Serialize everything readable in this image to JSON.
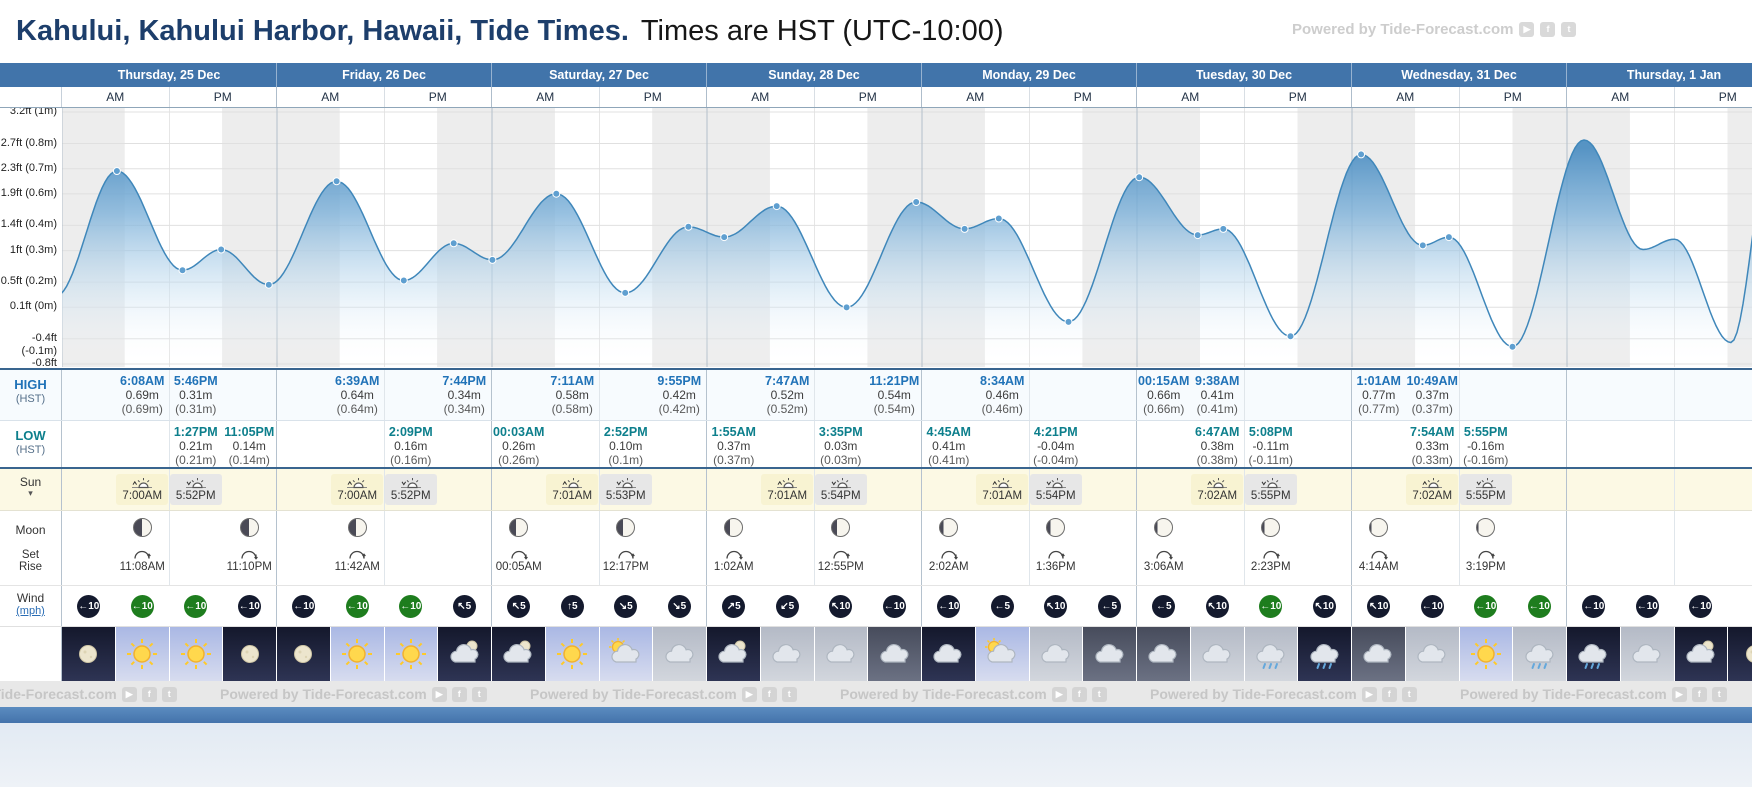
{
  "header": {
    "title_bold": "Kahului, Kahului Harbor, Hawaii, Tide Times.",
    "title_rest": "Times are HST (UTC-10:00)",
    "powered_by": "Powered by Tide-Forecast.com"
  },
  "labels": {
    "am": "AM",
    "pm": "PM",
    "high": "HIGH",
    "low": "LOW",
    "hst": "(HST)",
    "sun": "Sun",
    "sun_caret": "▾",
    "moon": "Moon",
    "set": "Set",
    "rise": "Rise",
    "wind": "Wind",
    "wind_unit": "(mph)"
  },
  "colors": {
    "day_header_blue": "#4174aa",
    "high_time_blue": "#2173b8",
    "low_time_teal": "#0d7f8c",
    "title_navy": "#1d3e6b",
    "badge_dark": "#141a2e",
    "badge_green": "#1e7d1e",
    "footer_blue": "#4b7eb6"
  },
  "chart_data": {
    "type": "area",
    "title": "Tide height curve, Kahului Harbor, 25-31 Dec",
    "unit": "m",
    "grid": true,
    "hours_per_day": 24,
    "y_axis_labels": [
      "3.2ft (1m)",
      "2.7ft (0.8m)",
      "2.3ft (0.7m)",
      "1.9ft (0.6m)",
      "1.4ft (0.4m)",
      "1ft (0.3m)",
      "0.5ft (0.2m)",
      "0.1ft (0m)",
      "-0.4ft (-0.1m)",
      "-0.8ft (-0.2m)"
    ],
    "y_ticks_ft": [
      3.2,
      2.7,
      2.3,
      1.9,
      1.4,
      1.0,
      0.5,
      0.1,
      -0.4,
      -0.8
    ],
    "extremes": [
      {
        "t": -0.8,
        "h": 0.08,
        "dot": false
      },
      {
        "t": 6.13,
        "h": 0.69,
        "dot": true
      },
      {
        "t": 13.45,
        "h": 0.21,
        "dot": true
      },
      {
        "t": 17.77,
        "h": 0.31,
        "dot": true
      },
      {
        "t": 23.08,
        "h": 0.14,
        "dot": true
      },
      {
        "t": 30.65,
        "h": 0.64,
        "dot": true
      },
      {
        "t": 38.15,
        "h": 0.16,
        "dot": true
      },
      {
        "t": 43.73,
        "h": 0.34,
        "dot": true
      },
      {
        "t": 48.05,
        "h": 0.26,
        "dot": true
      },
      {
        "t": 55.18,
        "h": 0.58,
        "dot": true
      },
      {
        "t": 62.87,
        "h": 0.1,
        "dot": true
      },
      {
        "t": 69.92,
        "h": 0.42,
        "dot": true
      },
      {
        "t": 73.92,
        "h": 0.37,
        "dot": true
      },
      {
        "t": 79.78,
        "h": 0.52,
        "dot": true
      },
      {
        "t": 87.58,
        "h": 0.03,
        "dot": true
      },
      {
        "t": 95.35,
        "h": 0.54,
        "dot": true
      },
      {
        "t": 100.75,
        "h": 0.41,
        "dot": true
      },
      {
        "t": 104.57,
        "h": 0.46,
        "dot": true
      },
      {
        "t": 112.35,
        "h": -0.04,
        "dot": true
      },
      {
        "t": 120.25,
        "h": 0.66,
        "dot": true
      },
      {
        "t": 126.78,
        "h": 0.38,
        "dot": true
      },
      {
        "t": 129.63,
        "h": 0.41,
        "dot": true
      },
      {
        "t": 137.13,
        "h": -0.11,
        "dot": true
      },
      {
        "t": 145.02,
        "h": 0.77,
        "dot": true
      },
      {
        "t": 151.9,
        "h": 0.33,
        "dot": true
      },
      {
        "t": 154.82,
        "h": 0.37,
        "dot": true
      },
      {
        "t": 161.92,
        "h": -0.16,
        "dot": true
      },
      {
        "t": 169.9,
        "h": 0.84,
        "dot": false
      },
      {
        "t": 176.5,
        "h": 0.31,
        "dot": false
      },
      {
        "t": 180.0,
        "h": 0.36,
        "dot": false
      },
      {
        "t": 186.3,
        "h": -0.14,
        "dot": false
      },
      {
        "t": 191.0,
        "h": 0.85,
        "dot": false
      }
    ],
    "night_bands": [
      [
        -6.0,
        7.0
      ],
      [
        17.87,
        31.0
      ],
      [
        41.87,
        55.02
      ],
      [
        65.88,
        79.02
      ],
      [
        89.9,
        103.02
      ],
      [
        113.9,
        127.03
      ],
      [
        137.92,
        151.05
      ],
      [
        161.92,
        175.03
      ],
      [
        185.92,
        199.0
      ]
    ]
  },
  "days": [
    {
      "label": "Thursday, 25 Dec",
      "high": [
        {
          "slot": 2,
          "time": "6:08AM",
          "m": "0.69m",
          "alt": "(0.69m)"
        },
        {
          "slot": 3,
          "time": "5:46PM",
          "m": "0.31m",
          "alt": "(0.31m)"
        }
      ],
      "low": [
        {
          "slot": 3,
          "time": "1:27PM",
          "m": "0.21m",
          "alt": "(0.21m)"
        },
        {
          "slot": 4,
          "time": "11:05PM",
          "m": "0.14m",
          "alt": "(0.14m)"
        }
      ],
      "sun": [
        {
          "slot": 2,
          "type": "rise",
          "time": "7:00AM"
        },
        {
          "slot": 3,
          "type": "set",
          "time": "5:52PM"
        }
      ],
      "moon": [
        {
          "slot": 2,
          "type": "rise",
          "time": "11:08AM"
        },
        {
          "slot": 4,
          "type": "set",
          "time": "11:10PM"
        }
      ],
      "moon_lit": 52,
      "wind": [
        {
          "slot": 1,
          "dir": "W",
          "mph": 10,
          "level": "calm"
        },
        {
          "slot": 2,
          "dir": "W",
          "mph": 10,
          "level": "fresh"
        },
        {
          "slot": 3,
          "dir": "W",
          "mph": 10,
          "level": "fresh"
        },
        {
          "slot": 4,
          "dir": "W",
          "mph": 10,
          "level": "calm"
        }
      ],
      "weather": [
        {
          "bg": "night",
          "icon": "moon"
        },
        {
          "bg": "day",
          "icon": "sun"
        },
        {
          "bg": "day",
          "icon": "sun"
        },
        {
          "bg": "night",
          "icon": "moon"
        }
      ]
    },
    {
      "label": "Friday, 26 Dec",
      "high": [
        {
          "slot": 2,
          "time": "6:39AM",
          "m": "0.64m",
          "alt": "(0.64m)"
        },
        {
          "slot": 4,
          "time": "7:44PM",
          "m": "0.34m",
          "alt": "(0.34m)"
        }
      ],
      "low": [
        {
          "slot": 3,
          "time": "2:09PM",
          "m": "0.16m",
          "alt": "(0.16m)"
        }
      ],
      "sun": [
        {
          "slot": 2,
          "type": "rise",
          "time": "7:00AM"
        },
        {
          "slot": 3,
          "type": "set",
          "time": "5:52PM"
        }
      ],
      "moon": [
        {
          "slot": 2,
          "type": "rise",
          "time": "11:42AM"
        }
      ],
      "moon_lit": 58,
      "wind": [
        {
          "slot": 1,
          "dir": "W",
          "mph": 10,
          "level": "calm"
        },
        {
          "slot": 2,
          "dir": "W",
          "mph": 10,
          "level": "fresh"
        },
        {
          "slot": 3,
          "dir": "W",
          "mph": 10,
          "level": "fresh"
        },
        {
          "slot": 4,
          "dir": "NW",
          "mph": 5,
          "level": "calm"
        }
      ],
      "weather": [
        {
          "bg": "night",
          "icon": "moon"
        },
        {
          "bg": "day",
          "icon": "sun"
        },
        {
          "bg": "day",
          "icon": "sun"
        },
        {
          "bg": "night",
          "icon": "cloud-moon"
        }
      ]
    },
    {
      "label": "Saturday, 27 Dec",
      "high": [
        {
          "slot": 2,
          "time": "7:11AM",
          "m": "0.58m",
          "alt": "(0.58m)"
        },
        {
          "slot": 4,
          "time": "9:55PM",
          "m": "0.42m",
          "alt": "(0.42m)"
        }
      ],
      "low": [
        {
          "slot": 1,
          "time": "00:03AM",
          "m": "0.26m",
          "alt": "(0.26m)"
        },
        {
          "slot": 3,
          "time": "2:52PM",
          "m": "0.10m",
          "alt": "(0.1m)"
        }
      ],
      "sun": [
        {
          "slot": 2,
          "type": "rise",
          "time": "7:01AM"
        },
        {
          "slot": 3,
          "type": "set",
          "time": "5:53PM"
        }
      ],
      "moon": [
        {
          "slot": 1,
          "type": "set",
          "time": "00:05AM"
        },
        {
          "slot": 3,
          "type": "rise",
          "time": "12:17PM"
        }
      ],
      "moon_lit": 65,
      "wind": [
        {
          "slot": 1,
          "dir": "NW",
          "mph": 5,
          "level": "calm"
        },
        {
          "slot": 2,
          "dir": "N",
          "mph": 5,
          "level": "calm"
        },
        {
          "slot": 3,
          "dir": "SE",
          "mph": 5,
          "level": "calm"
        },
        {
          "slot": 4,
          "dir": "SE",
          "mph": 5,
          "level": "calm"
        }
      ],
      "weather": [
        {
          "bg": "night",
          "icon": "cloud-moon"
        },
        {
          "bg": "day",
          "icon": "sun"
        },
        {
          "bg": "day",
          "icon": "sun-cloud"
        },
        {
          "bg": "gray",
          "icon": "cloud"
        }
      ]
    },
    {
      "label": "Sunday, 28 Dec",
      "high": [
        {
          "slot": 2,
          "time": "7:47AM",
          "m": "0.52m",
          "alt": "(0.52m)"
        },
        {
          "slot": 4,
          "time": "11:21PM",
          "m": "0.54m",
          "alt": "(0.54m)"
        }
      ],
      "low": [
        {
          "slot": 1,
          "time": "1:55AM",
          "m": "0.37m",
          "alt": "(0.37m)"
        },
        {
          "slot": 3,
          "time": "3:35PM",
          "m": "0.03m",
          "alt": "(0.03m)"
        }
      ],
      "sun": [
        {
          "slot": 2,
          "type": "rise",
          "time": "7:01AM"
        },
        {
          "slot": 3,
          "type": "set",
          "time": "5:54PM"
        }
      ],
      "moon": [
        {
          "slot": 1,
          "type": "set",
          "time": "1:02AM"
        },
        {
          "slot": 3,
          "type": "rise",
          "time": "12:55PM"
        }
      ],
      "moon_lit": 72,
      "wind": [
        {
          "slot": 1,
          "dir": "NE",
          "mph": 5,
          "level": "calm"
        },
        {
          "slot": 2,
          "dir": "SW",
          "mph": 5,
          "level": "calm"
        },
        {
          "slot": 3,
          "dir": "NW",
          "mph": 10,
          "level": "calm"
        },
        {
          "slot": 4,
          "dir": "W",
          "mph": 10,
          "level": "calm"
        }
      ],
      "weather": [
        {
          "bg": "night",
          "icon": "cloud-moon"
        },
        {
          "bg": "gray",
          "icon": "cloud"
        },
        {
          "bg": "gray",
          "icon": "cloud"
        },
        {
          "bg": "darkgray",
          "icon": "cloud"
        }
      ]
    },
    {
      "label": "Monday, 29 Dec",
      "high": [
        {
          "slot": 2,
          "time": "8:34AM",
          "m": "0.46m",
          "alt": "(0.46m)"
        }
      ],
      "low": [
        {
          "slot": 1,
          "time": "4:45AM",
          "m": "0.41m",
          "alt": "(0.41m)"
        },
        {
          "slot": 3,
          "time": "4:21PM",
          "m": "-0.04m",
          "alt": "(-0.04m)"
        }
      ],
      "sun": [
        {
          "slot": 2,
          "type": "rise",
          "time": "7:01AM"
        },
        {
          "slot": 3,
          "type": "set",
          "time": "5:54PM"
        }
      ],
      "moon": [
        {
          "slot": 1,
          "type": "set",
          "time": "2:02AM"
        },
        {
          "slot": 3,
          "type": "rise",
          "time": "1:36PM"
        }
      ],
      "moon_lit": 80,
      "wind": [
        {
          "slot": 1,
          "dir": "W",
          "mph": 10,
          "level": "calm"
        },
        {
          "slot": 2,
          "dir": "W",
          "mph": 5,
          "level": "calm"
        },
        {
          "slot": 3,
          "dir": "NW",
          "mph": 10,
          "level": "calm"
        },
        {
          "slot": 4,
          "dir": "W",
          "mph": 5,
          "level": "calm"
        }
      ],
      "weather": [
        {
          "bg": "night",
          "icon": "cloud"
        },
        {
          "bg": "day",
          "icon": "sun-cloud"
        },
        {
          "bg": "gray",
          "icon": "cloud"
        },
        {
          "bg": "darkgray",
          "icon": "cloud"
        }
      ]
    },
    {
      "label": "Tuesday, 30 Dec",
      "high": [
        {
          "slot": 1,
          "time": "00:15AM",
          "m": "0.66m",
          "alt": "(0.66m)"
        },
        {
          "slot": 2,
          "time": "9:38AM",
          "m": "0.41m",
          "alt": "(0.41m)"
        }
      ],
      "low": [
        {
          "slot": 2,
          "time": "6:47AM",
          "m": "0.38m",
          "alt": "(0.38m)"
        },
        {
          "slot": 3,
          "time": "5:08PM",
          "m": "-0.11m",
          "alt": "(-0.11m)"
        }
      ],
      "sun": [
        {
          "slot": 2,
          "type": "rise",
          "time": "7:02AM"
        },
        {
          "slot": 3,
          "type": "set",
          "time": "5:55PM"
        }
      ],
      "moon": [
        {
          "slot": 1,
          "type": "set",
          "time": "3:06AM"
        },
        {
          "slot": 3,
          "type": "rise",
          "time": "2:23PM"
        }
      ],
      "moon_lit": 86,
      "wind": [
        {
          "slot": 1,
          "dir": "W",
          "mph": 5,
          "level": "calm"
        },
        {
          "slot": 2,
          "dir": "NW",
          "mph": 10,
          "level": "calm"
        },
        {
          "slot": 3,
          "dir": "W",
          "mph": 10,
          "level": "fresh"
        },
        {
          "slot": 4,
          "dir": "NW",
          "mph": 10,
          "level": "calm"
        }
      ],
      "weather": [
        {
          "bg": "darkgray",
          "icon": "cloud"
        },
        {
          "bg": "gray",
          "icon": "cloud"
        },
        {
          "bg": "gray",
          "icon": "rain"
        },
        {
          "bg": "night",
          "icon": "rain"
        }
      ]
    },
    {
      "label": "Wednesday, 31 Dec",
      "high": [
        {
          "slot": 1,
          "time": "1:01AM",
          "m": "0.77m",
          "alt": "(0.77m)"
        },
        {
          "slot": 2,
          "time": "10:49AM",
          "m": "0.37m",
          "alt": "(0.37m)"
        }
      ],
      "low": [
        {
          "slot": 2,
          "time": "7:54AM",
          "m": "0.33m",
          "alt": "(0.33m)"
        },
        {
          "slot": 3,
          "time": "5:55PM",
          "m": "-0.16m",
          "alt": "(-0.16m)"
        }
      ],
      "sun": [
        {
          "slot": 2,
          "type": "rise",
          "time": "7:02AM"
        },
        {
          "slot": 3,
          "type": "set",
          "time": "5:55PM"
        }
      ],
      "moon": [
        {
          "slot": 1,
          "type": "set",
          "time": "4:14AM"
        },
        {
          "slot": 3,
          "type": "rise",
          "time": "3:19PM"
        }
      ],
      "moon_lit": 92,
      "wind": [
        {
          "slot": 1,
          "dir": "NW",
          "mph": 10,
          "level": "calm"
        },
        {
          "slot": 2,
          "dir": "W",
          "mph": 10,
          "level": "calm"
        },
        {
          "slot": 3,
          "dir": "W",
          "mph": 10,
          "level": "fresh"
        },
        {
          "slot": 4,
          "dir": "W",
          "mph": 10,
          "level": "fresh"
        }
      ],
      "weather": [
        {
          "bg": "darkgray",
          "icon": "cloud"
        },
        {
          "bg": "gray",
          "icon": "cloud"
        },
        {
          "bg": "day",
          "icon": "sun"
        },
        {
          "bg": "gray",
          "icon": "rain"
        }
      ]
    },
    {
      "label": "Thursday, 1 Jan",
      "high": [],
      "low": [],
      "sun": [],
      "moon": [],
      "moon_lit": 97,
      "wind": [
        {
          "slot": 1,
          "dir": "W",
          "mph": 10,
          "level": "calm"
        },
        {
          "slot": 2,
          "dir": "W",
          "mph": 10,
          "level": "calm"
        },
        {
          "slot": 3,
          "dir": "W",
          "mph": 10,
          "level": "calm"
        }
      ],
      "weather": [
        {
          "bg": "night",
          "icon": "rain"
        },
        {
          "bg": "gray",
          "icon": "cloud"
        },
        {
          "bg": "night",
          "icon": "cloud-moon"
        },
        {
          "bg": "night",
          "icon": "moon"
        }
      ]
    }
  ],
  "footer": {
    "powered_by": "Powered by Tide-Forecast.com",
    "watermark_lefts": [
      -90,
      220,
      530,
      840,
      1150,
      1460,
      1770
    ]
  }
}
